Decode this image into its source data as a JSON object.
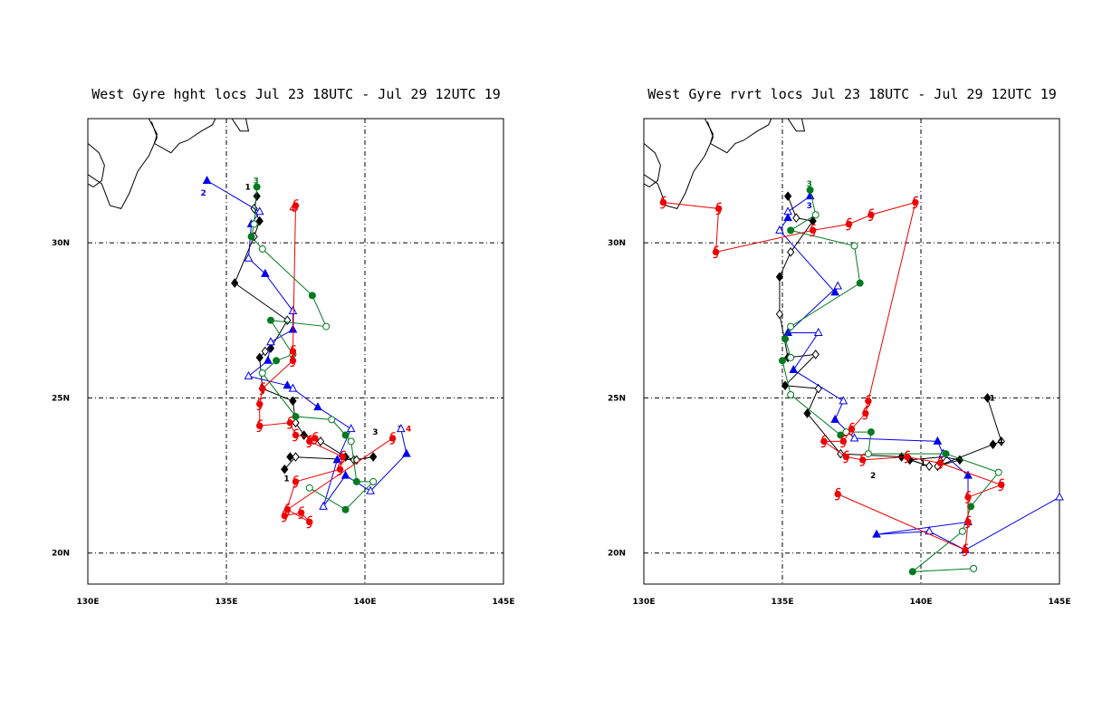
{
  "colors": {
    "black": "#000000",
    "blue": "#0000ee",
    "green": "#007a1f",
    "red": "#ee0000"
  },
  "chart_data": [
    {
      "type": "scatter",
      "title": "West Gyre hght locs Jul 23 18UTC - Jul 29 12UTC 19",
      "xlim": [
        130,
        145
      ],
      "ylim": [
        19,
        34
      ],
      "xticks": [
        {
          "v": 130,
          "label": "130E"
        },
        {
          "v": 135,
          "label": "135E"
        },
        {
          "v": 140,
          "label": "140E"
        },
        {
          "v": 145,
          "label": "145E"
        }
      ],
      "yticks": [
        {
          "v": 20,
          "label": "20N"
        },
        {
          "v": 25,
          "label": "25N"
        },
        {
          "v": 30,
          "label": "30N"
        }
      ],
      "grid": true,
      "series": [
        {
          "color": "black",
          "marker": "diamond",
          "label": "1",
          "x": [
            136.1,
            136.0,
            136.2,
            136.0,
            135.3,
            137.2,
            136.6,
            136.4,
            136.2,
            136.3,
            137.4,
            137.5,
            137.8,
            138.4,
            139.3,
            139.6,
            140.3,
            139.7,
            137.3,
            137.5,
            137.1
          ],
          "y": [
            31.5,
            31.1,
            30.7,
            30.2,
            28.7,
            27.5,
            26.6,
            26.5,
            26.3,
            25.3,
            24.9,
            24.2,
            23.8,
            23.6,
            23.1,
            23.0,
            23.1,
            23.0,
            23.1,
            23.1,
            22.7
          ],
          "labels": [
            {
              "x": 135.8,
              "y": 31.8,
              "t": "1"
            },
            {
              "x": 137.2,
              "y": 22.4,
              "t": "1"
            },
            {
              "x": 140.4,
              "y": 23.9,
              "t": "3"
            },
            {
              "x": 141.3,
              "y": 24.0,
              "t": "2"
            }
          ]
        },
        {
          "color": "blue",
          "marker": "triangle",
          "label": "2",
          "x": [
            134.3,
            136.2,
            135.9,
            135.8,
            136.4,
            137.4,
            137.4,
            136.6,
            136.5,
            135.8,
            137.2,
            137.4,
            138.3,
            139.5,
            139.0,
            138.5,
            139.3,
            140.2,
            141.5,
            141.3
          ],
          "y": [
            32.0,
            31.0,
            30.6,
            29.5,
            29.0,
            27.8,
            27.2,
            26.8,
            26.2,
            25.7,
            25.4,
            25.3,
            24.7,
            24.0,
            23.0,
            21.5,
            22.5,
            22.0,
            23.2,
            24.0
          ],
          "labels": [
            {
              "x": 134.2,
              "y": 31.6,
              "t": "2"
            }
          ]
        },
        {
          "color": "green",
          "marker": "circle",
          "label": "3",
          "x": [
            136.1,
            136.0,
            135.9,
            136.3,
            138.1,
            138.6,
            136.6,
            137.4,
            136.8,
            136.3,
            137.5,
            138.8,
            139.3,
            139.5,
            139.7,
            140.3,
            139.3,
            138.0
          ],
          "y": [
            31.8,
            30.6,
            30.2,
            29.8,
            28.3,
            27.3,
            27.5,
            26.4,
            26.2,
            25.8,
            24.4,
            24.3,
            23.8,
            23.6,
            22.3,
            22.3,
            21.4,
            22.1
          ],
          "labels": [
            {
              "x": 136.1,
              "y": 32.0,
              "t": "3"
            }
          ]
        },
        {
          "color": "red",
          "marker": "hurricane",
          "label": "4",
          "x": [
            137.5,
            137.4,
            137.4,
            136.3,
            136.2,
            136.2,
            137.3,
            137.5,
            138.2,
            138.0,
            139.2,
            139.1,
            137.5,
            137.1,
            137.7,
            138.0,
            137.2,
            141.0
          ],
          "y": [
            31.2,
            26.5,
            26.2,
            25.3,
            24.8,
            24.1,
            24.2,
            23.8,
            23.7,
            23.6,
            23.1,
            22.7,
            22.3,
            21.2,
            21.3,
            21.0,
            21.4,
            23.7
          ],
          "labels": [
            {
              "x": 137.4,
              "y": 31.1,
              "t": "4"
            },
            {
              "x": 141.6,
              "y": 24.0,
              "t": "4"
            }
          ]
        }
      ]
    },
    {
      "type": "scatter",
      "title": "West Gyre rvrt locs Jul 23 18UTC - Jul 29 12UTC 19",
      "xlim": [
        130,
        145
      ],
      "ylim": [
        19,
        34
      ],
      "xticks": [
        {
          "v": 130,
          "label": "130E"
        },
        {
          "v": 135,
          "label": "135E"
        },
        {
          "v": 140,
          "label": "140E"
        },
        {
          "v": 145,
          "label": "145E"
        }
      ],
      "yticks": [
        {
          "v": 20,
          "label": "20N"
        },
        {
          "v": 25,
          "label": "25N"
        },
        {
          "v": 30,
          "label": "30N"
        }
      ],
      "grid": true,
      "series": [
        {
          "color": "black",
          "marker": "diamond",
          "label": "1",
          "x": [
            135.2,
            135.5,
            136.1,
            135.3,
            134.9,
            134.9,
            135.2,
            136.2,
            135.1,
            136.3,
            135.9,
            137.1,
            139.3,
            140.3,
            139.6,
            140.8,
            141.4,
            140.6,
            142.6,
            142.9,
            142.4
          ],
          "y": [
            31.5,
            30.8,
            30.7,
            29.7,
            28.9,
            27.7,
            26.3,
            26.4,
            25.4,
            25.3,
            24.5,
            23.2,
            23.1,
            22.8,
            23.0,
            23.1,
            23.0,
            22.8,
            23.5,
            23.6,
            25.0
          ],
          "labels": [
            {
              "x": 142.6,
              "y": 25.0,
              "t": "1"
            },
            {
              "x": 140.1,
              "y": 22.9,
              "t": "1"
            },
            {
              "x": 142.9,
              "y": 23.6,
              "t": "4"
            },
            {
              "x": 138.3,
              "y": 22.5,
              "t": "2"
            }
          ]
        },
        {
          "color": "blue",
          "marker": "triangle",
          "label": "2",
          "x": [
            136.0,
            135.2,
            135.2,
            134.9,
            136.9,
            137.0,
            135.2,
            136.3,
            135.4,
            137.2,
            136.9,
            137.6,
            140.6,
            140.8,
            141.7,
            141.7,
            138.4,
            140.3,
            141.6,
            145.0
          ],
          "y": [
            31.5,
            31.0,
            30.8,
            30.4,
            28.4,
            28.6,
            27.1,
            27.1,
            25.9,
            24.9,
            24.3,
            23.7,
            23.6,
            23.2,
            22.5,
            21.0,
            20.6,
            20.7,
            20.1,
            21.8
          ],
          "labels": [
            {
              "x": 136.0,
              "y": 31.2,
              "t": "3"
            }
          ]
        },
        {
          "color": "green",
          "marker": "circle",
          "label": "3",
          "x": [
            136.0,
            136.2,
            135.3,
            137.6,
            137.8,
            135.3,
            135.1,
            135.3,
            135.0,
            135.3,
            137.1,
            137.3,
            138.2,
            138.1,
            140.9,
            142.8,
            141.8,
            141.5,
            139.7,
            141.9
          ],
          "y": [
            31.7,
            30.9,
            30.4,
            29.9,
            28.7,
            27.3,
            26.9,
            26.3,
            26.2,
            25.1,
            23.8,
            23.9,
            23.9,
            23.2,
            23.2,
            22.6,
            21.5,
            20.7,
            19.4,
            19.5
          ],
          "labels": [
            {
              "x": 136.0,
              "y": 31.9,
              "t": "3"
            }
          ]
        },
        {
          "color": "red",
          "marker": "hurricane",
          "label": "4",
          "x": [
            130.7,
            132.7,
            132.6,
            136.1,
            137.4,
            138.2,
            139.8,
            138.1,
            138.0,
            137.5,
            137.2,
            136.5,
            137.3,
            137.9,
            139.5,
            140.7,
            142.9,
            141.7,
            141.7,
            141.6,
            137.0
          ],
          "y": [
            31.3,
            31.1,
            29.7,
            30.4,
            30.6,
            30.9,
            31.3,
            24.9,
            24.5,
            24.0,
            23.6,
            23.6,
            23.1,
            23.0,
            23.1,
            22.9,
            22.2,
            21.8,
            21.0,
            20.1,
            21.9
          ],
          "labels": [
            {
              "x": 130.7,
              "y": 31.3,
              "t": "4"
            }
          ]
        }
      ]
    }
  ]
}
